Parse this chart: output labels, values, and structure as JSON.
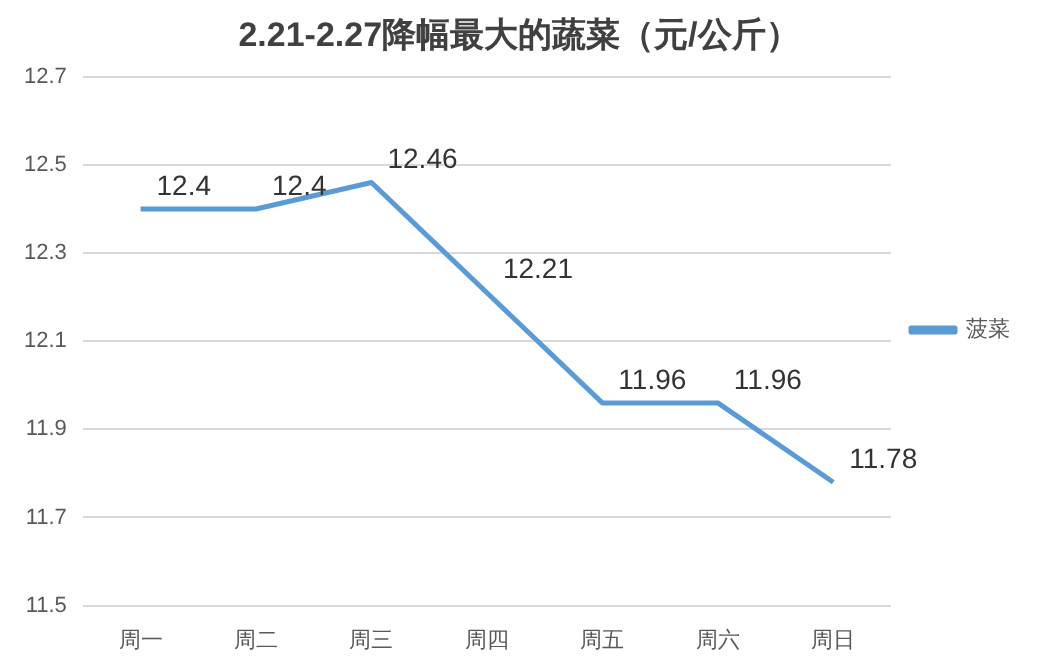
{
  "chart_data": {
    "type": "line",
    "title": "2.21-2.27降幅最大的蔬菜（元/公斤）",
    "categories": [
      "周一",
      "周二",
      "周三",
      "周四",
      "周五",
      "周六",
      "周日"
    ],
    "series": [
      {
        "name": "菠菜",
        "color": "#5b9bd5",
        "values": [
          12.4,
          12.4,
          12.46,
          12.21,
          11.96,
          11.96,
          11.78
        ]
      }
    ],
    "ylim": [
      11.5,
      12.7
    ],
    "yticks": [
      11.5,
      11.7,
      11.9,
      12.1,
      12.3,
      12.5,
      12.7
    ],
    "grid": "y",
    "legend": "right",
    "data_labels": true,
    "marker": "none",
    "line_style": "solid"
  }
}
